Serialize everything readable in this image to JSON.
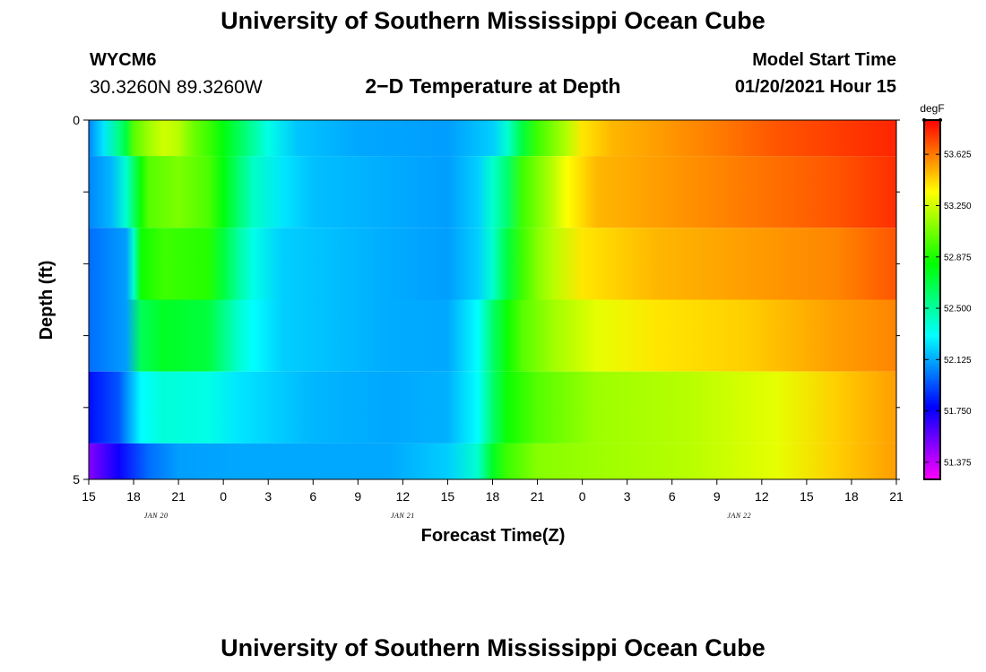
{
  "header": {
    "title": "University of Southern Mississippi Ocean Cube",
    "station_id": "WYCM6",
    "station_coords": "30.3260N 89.3260W",
    "start_label": "Model Start Time",
    "start_value": "01/20/2021 Hour 15"
  },
  "footer": {
    "title": "University of Southern Mississippi Ocean Cube"
  },
  "chart_data": {
    "type": "heatmap",
    "title": "2−D Temperature at Depth",
    "xlabel": "Forecast Time(Z)",
    "ylabel": "Depth (ft)",
    "x_tick_labels": [
      "15",
      "18",
      "21",
      "0",
      "3",
      "6",
      "9",
      "12",
      "15",
      "18",
      "21",
      "0",
      "3",
      "6",
      "9",
      "12",
      "15",
      "18",
      "21"
    ],
    "date_labels": [
      {
        "label": "JAN 20",
        "tick_index": 1.5
      },
      {
        "label": "JAN 21",
        "tick_index": 7
      },
      {
        "label": "JAN 22",
        "tick_index": 14.5
      }
    ],
    "y_tick_labels": [
      {
        "depth": 0,
        "label": "0"
      },
      {
        "depth": 5,
        "label": "5"
      }
    ],
    "ylim": [
      0,
      5
    ],
    "x_hours_range": [
      0,
      54
    ],
    "colorbar": {
      "unit": "degF",
      "range": [
        51.25,
        53.875
      ],
      "ticks": [
        "51.375",
        "51.750",
        "52.125",
        "52.500",
        "52.875",
        "53.250",
        "53.625"
      ]
    },
    "layers": [
      {
        "depth_range": [
          0,
          0.5
        ],
        "knots": [
          [
            0,
            52.05
          ],
          [
            1,
            52.25
          ],
          [
            2,
            52.55
          ],
          [
            2.5,
            52.7
          ],
          [
            3,
            53.0
          ],
          [
            4,
            53.15
          ],
          [
            5,
            53.25
          ],
          [
            6,
            53.2
          ],
          [
            7,
            53.05
          ],
          [
            8,
            52.95
          ],
          [
            9,
            52.8
          ],
          [
            10,
            52.65
          ],
          [
            11,
            52.5
          ],
          [
            12,
            52.35
          ],
          [
            14,
            52.18
          ],
          [
            18,
            52.12
          ],
          [
            24,
            52.1
          ],
          [
            27,
            52.2
          ],
          [
            28,
            52.4
          ],
          [
            29,
            52.7
          ],
          [
            30,
            52.95
          ],
          [
            32,
            53.2
          ],
          [
            33,
            53.4
          ],
          [
            35,
            53.5
          ],
          [
            38,
            53.55
          ],
          [
            42,
            53.62
          ],
          [
            46,
            53.7
          ],
          [
            50,
            53.75
          ],
          [
            54,
            53.8
          ]
        ]
      },
      {
        "depth_range": [
          0.5,
          1.5
        ],
        "knots": [
          [
            0,
            52.05
          ],
          [
            1.5,
            52.15
          ],
          [
            2.5,
            52.4
          ],
          [
            3.5,
            52.85
          ],
          [
            4,
            53.0
          ],
          [
            6,
            53.08
          ],
          [
            8,
            52.98
          ],
          [
            9,
            52.8
          ],
          [
            10,
            52.6
          ],
          [
            11,
            52.42
          ],
          [
            13,
            52.25
          ],
          [
            15,
            52.17
          ],
          [
            20,
            52.13
          ],
          [
            24,
            52.1
          ],
          [
            26,
            52.2
          ],
          [
            27,
            52.4
          ],
          [
            28,
            52.6
          ],
          [
            29,
            52.95
          ],
          [
            31,
            53.2
          ],
          [
            32,
            53.35
          ],
          [
            34,
            53.5
          ],
          [
            38,
            53.55
          ],
          [
            42,
            53.6
          ],
          [
            46,
            53.65
          ],
          [
            50,
            53.7
          ],
          [
            54,
            53.78
          ]
        ]
      },
      {
        "depth_range": [
          1.5,
          2.5
        ],
        "knots": [
          [
            0,
            52.0
          ],
          [
            2.5,
            52.1
          ],
          [
            3,
            52.4
          ],
          [
            3.5,
            52.85
          ],
          [
            5,
            52.95
          ],
          [
            8,
            52.9
          ],
          [
            9,
            52.7
          ],
          [
            10,
            52.5
          ],
          [
            11,
            52.35
          ],
          [
            13,
            52.2
          ],
          [
            20,
            52.13
          ],
          [
            24,
            52.1
          ],
          [
            26,
            52.2
          ],
          [
            27,
            52.4
          ],
          [
            28,
            52.7
          ],
          [
            29,
            52.95
          ],
          [
            30,
            53.1
          ],
          [
            31,
            53.2
          ],
          [
            33,
            53.4
          ],
          [
            38,
            53.5
          ],
          [
            44,
            53.55
          ],
          [
            50,
            53.6
          ],
          [
            54,
            53.7
          ]
        ]
      },
      {
        "depth_range": [
          2.5,
          3.5
        ],
        "knots": [
          [
            0,
            52.0
          ],
          [
            2.5,
            52.1
          ],
          [
            3.5,
            52.65
          ],
          [
            5,
            52.75
          ],
          [
            8,
            52.7
          ],
          [
            9,
            52.55
          ],
          [
            10,
            52.4
          ],
          [
            11,
            52.3
          ],
          [
            13,
            52.2
          ],
          [
            20,
            52.13
          ],
          [
            24,
            52.12
          ],
          [
            26,
            52.3
          ],
          [
            27,
            52.6
          ],
          [
            28,
            52.85
          ],
          [
            29,
            53.0
          ],
          [
            31,
            53.15
          ],
          [
            34,
            53.3
          ],
          [
            38,
            53.4
          ],
          [
            44,
            53.45
          ],
          [
            50,
            53.55
          ],
          [
            54,
            53.6
          ]
        ]
      },
      {
        "depth_range": [
          3.5,
          4.5
        ],
        "knots": [
          [
            0,
            51.8
          ],
          [
            2,
            51.95
          ],
          [
            3.5,
            52.3
          ],
          [
            5,
            52.38
          ],
          [
            8,
            52.35
          ],
          [
            10,
            52.25
          ],
          [
            15,
            52.15
          ],
          [
            20,
            52.12
          ],
          [
            24,
            52.14
          ],
          [
            26,
            52.3
          ],
          [
            27,
            52.6
          ],
          [
            28,
            52.85
          ],
          [
            30,
            53.0
          ],
          [
            34,
            53.15
          ],
          [
            40,
            53.2
          ],
          [
            46,
            53.3
          ],
          [
            50,
            53.45
          ],
          [
            54,
            53.55
          ]
        ]
      },
      {
        "depth_range": [
          4.5,
          5
        ],
        "knots": [
          [
            0,
            51.5
          ],
          [
            2,
            51.75
          ],
          [
            4,
            52.0
          ],
          [
            6,
            52.1
          ],
          [
            10,
            52.12
          ],
          [
            15,
            52.12
          ],
          [
            20,
            52.12
          ],
          [
            24,
            52.2
          ],
          [
            26,
            52.4
          ],
          [
            27,
            52.75
          ],
          [
            28,
            52.95
          ],
          [
            30,
            53.1
          ],
          [
            34,
            53.15
          ],
          [
            40,
            53.2
          ],
          [
            46,
            53.3
          ],
          [
            50,
            53.45
          ],
          [
            54,
            53.55
          ]
        ]
      }
    ]
  }
}
